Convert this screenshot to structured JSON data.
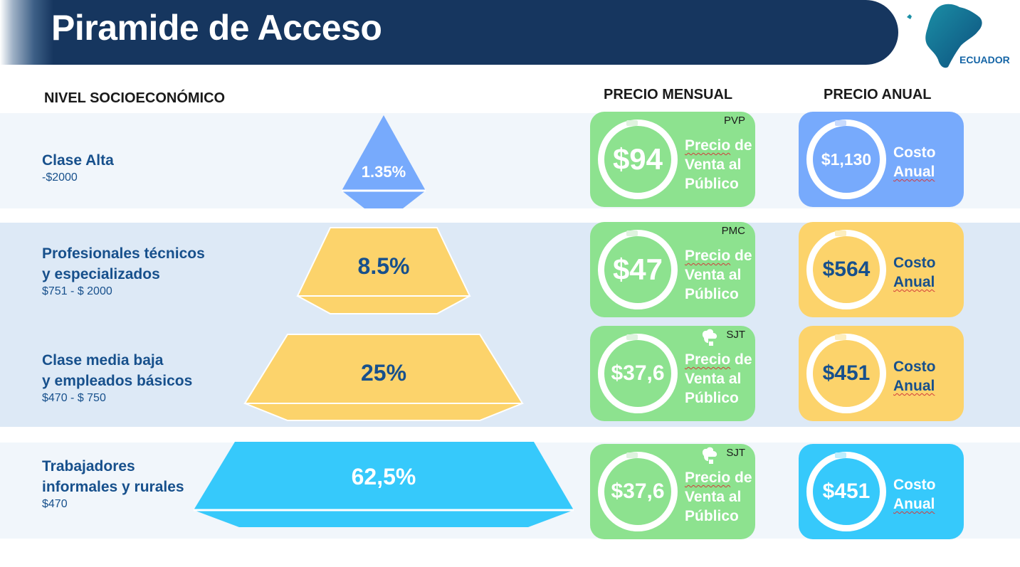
{
  "header": {
    "title": "Piramide de Acceso",
    "country": "ECUADOR"
  },
  "columns": {
    "level": "NIVEL SOCIOECONÓMICO",
    "monthly": "PRECIO MENSUAL",
    "annual": "PRECIO ANUAL"
  },
  "colors": {
    "header_bg": "#16365f",
    "label_text": "#17508c",
    "tier_blue": "#77aafc",
    "tier_yellow": "#fcd36b",
    "tier_cyan": "#36c9fb",
    "monthly_card": "#8de28f",
    "band_light": "#f1f6fb",
    "band_mid": "#dde9f6"
  },
  "tiers": [
    {
      "name": "Clase Alta",
      "range": "-$2000",
      "percent": "1.35%",
      "monthly_tag": "PVP",
      "monthly_price": "$94",
      "monthly_desc": "Precio de\nVenta al\nPúblico",
      "annual_price": "$1,130",
      "annual_desc": "Costo\nAnual"
    },
    {
      "name": "Profesionales técnicos\ny especializados",
      "range": "$751 - $ 2000",
      "percent": "8.5%",
      "monthly_tag": "PMC",
      "monthly_price": "$47",
      "monthly_desc": "Precio de\nVenta al\nPúblico",
      "annual_price": "$564",
      "annual_desc": "Costo\nAnual"
    },
    {
      "name": "Clase media baja\ny empleados básicos",
      "range": "$470 - $ 750",
      "percent": "25%",
      "monthly_tag": "SJT",
      "monthly_price": "$37,6",
      "monthly_desc": "Precio de\nVenta al\nPúblico",
      "annual_price": "$451",
      "annual_desc": "Costo\nAnual"
    },
    {
      "name": "Trabajadores\ninformales y rurales",
      "range": "$470",
      "percent": "62,5%",
      "monthly_tag": "SJT",
      "monthly_price": "$37,6",
      "monthly_desc": "Precio de\nVenta al\nPúblico",
      "annual_price": "$451",
      "annual_desc": "Costo\nAnual"
    }
  ]
}
